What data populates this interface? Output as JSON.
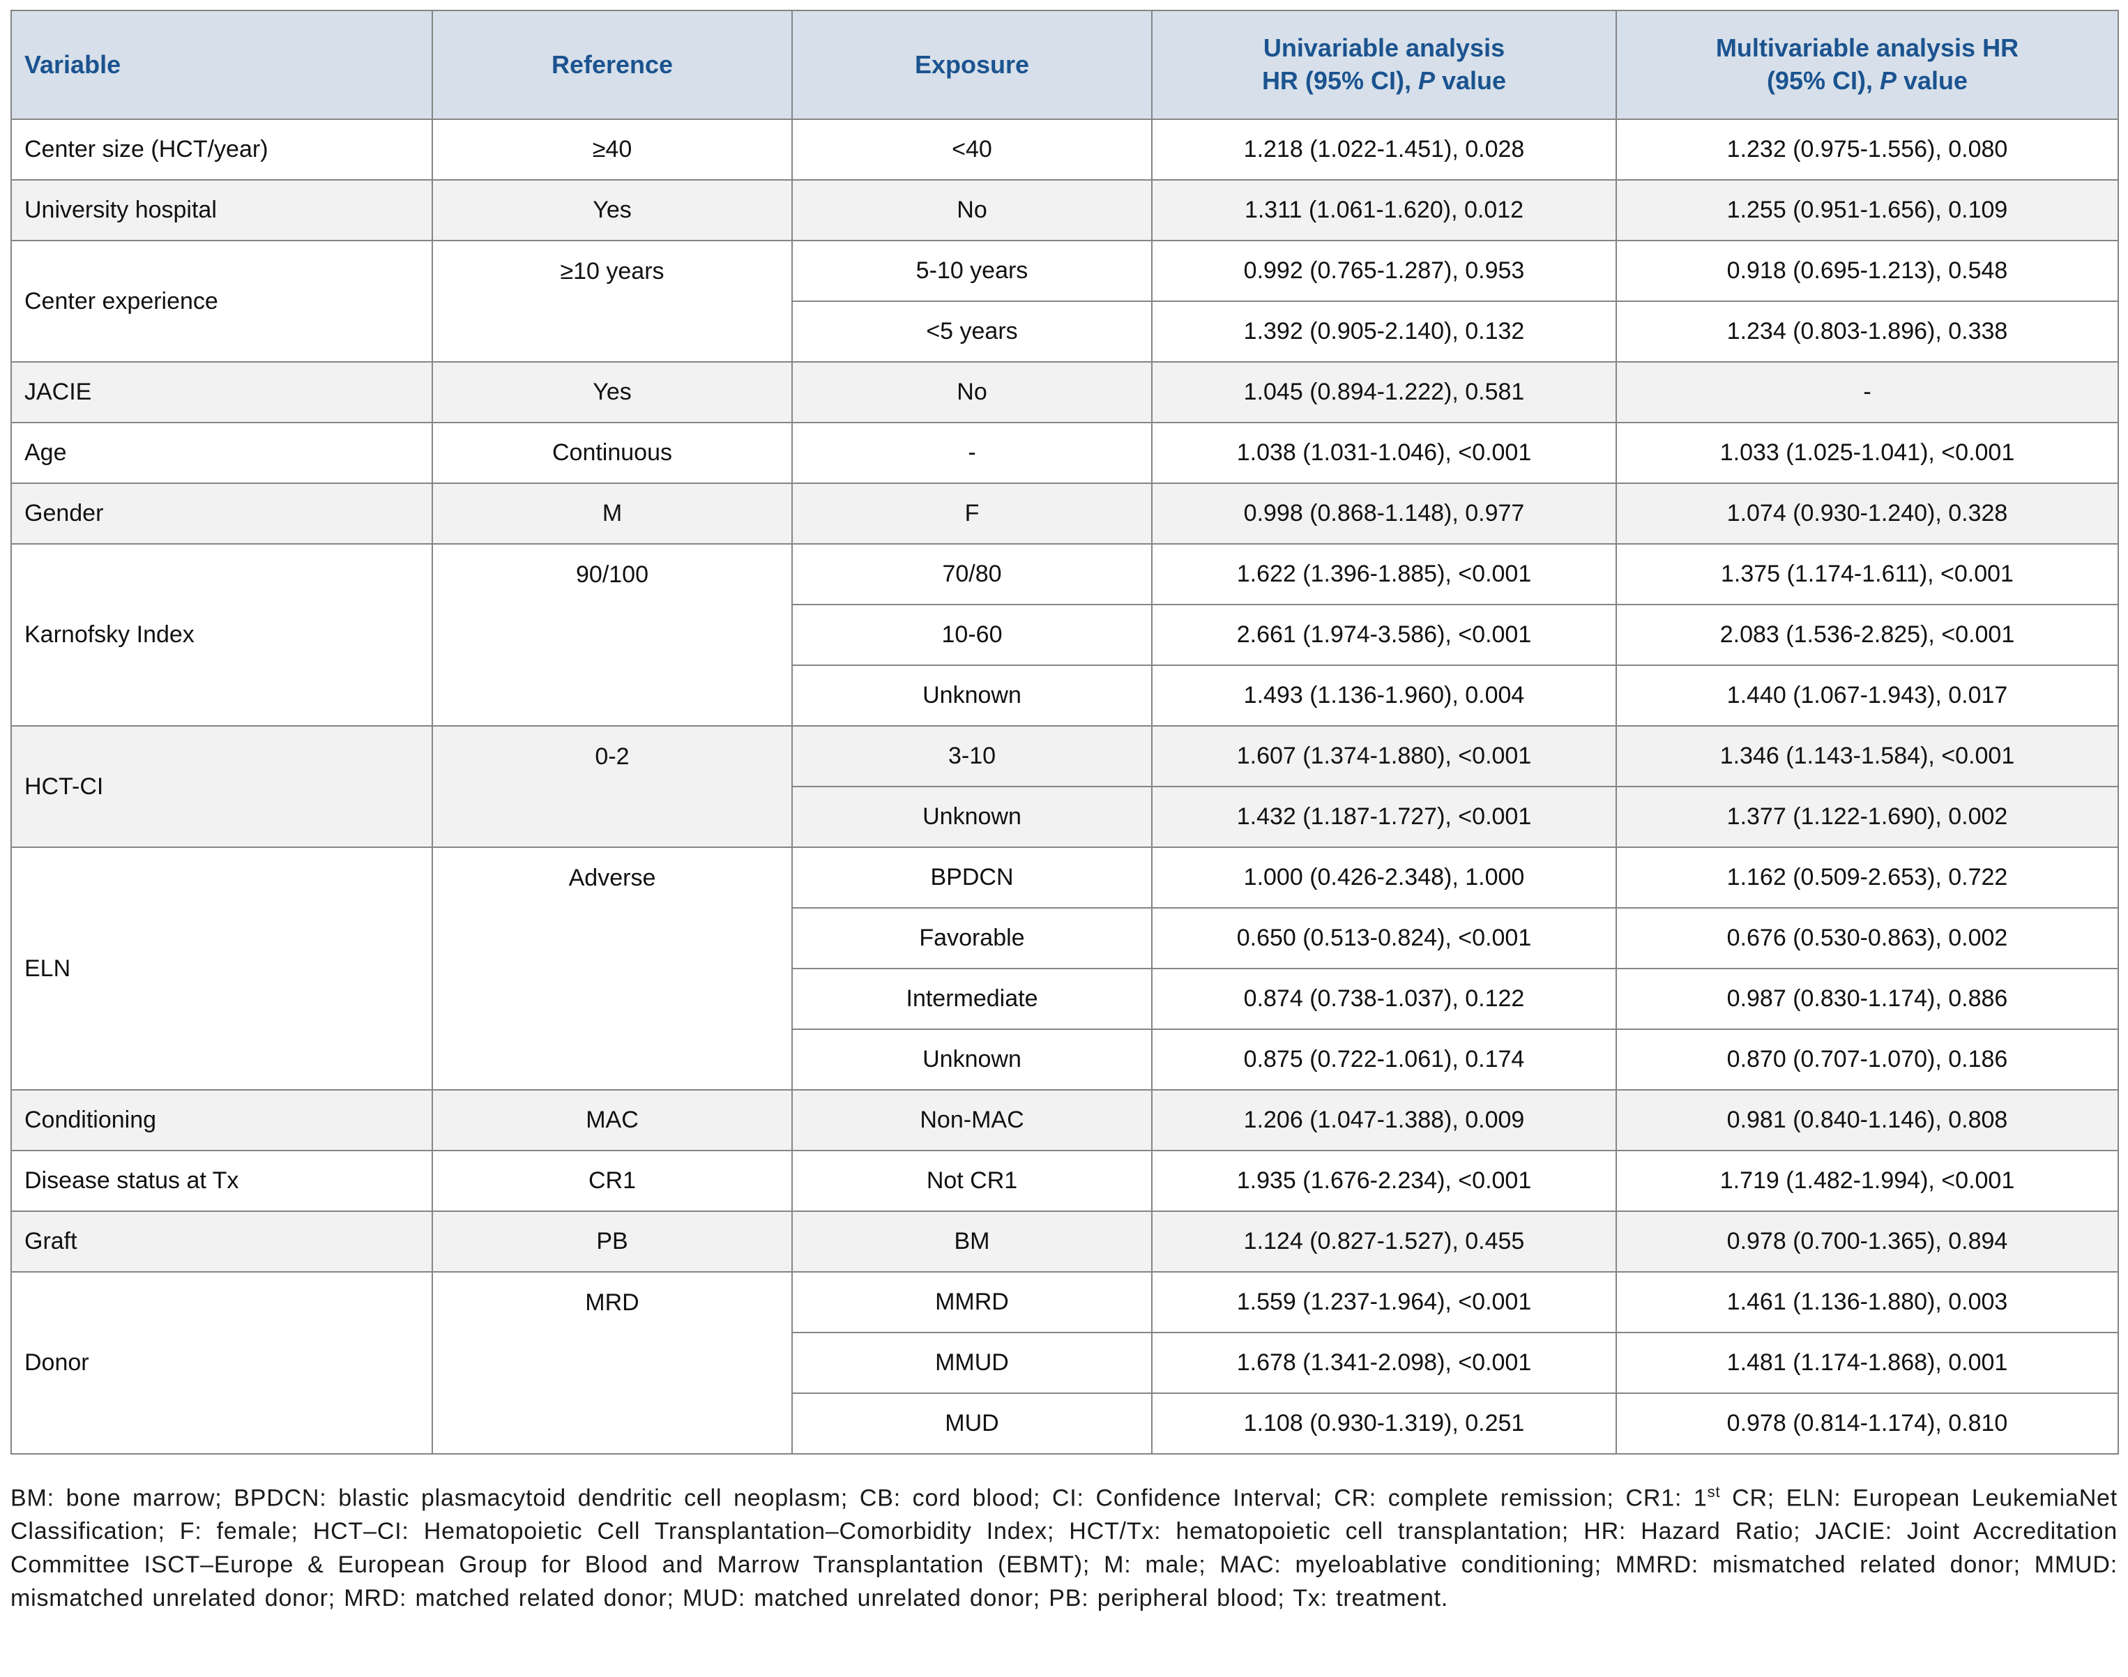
{
  "colors": {
    "header_bg": "#d7e0ea",
    "header_text": "#1b538f",
    "row_alt": "#f2f2f2",
    "border": "#858585"
  },
  "table": {
    "header": {
      "variable": "Variable",
      "reference": "Reference",
      "exposure": "Exposure",
      "univariable_line1": "Univariable analysis",
      "univariable_line2_prefix": "HR (95% CI), ",
      "multivariable_line1": "Multivariable analysis HR",
      "multivariable_line2_prefix": "(95% CI), ",
      "p_italic": "P",
      "value_suffix": " value"
    },
    "groups": [
      {
        "variable": "Center size (HCT/year)",
        "reference": "≥40",
        "shade": false,
        "rows": [
          {
            "exposure": "<40",
            "uni": "1.218 (1.022-1.451), 0.028",
            "multi": "1.232 (0.975-1.556), 0.080"
          }
        ]
      },
      {
        "variable": "University hospital",
        "reference": "Yes",
        "shade": true,
        "rows": [
          {
            "exposure": "No",
            "uni": "1.311 (1.061-1.620), 0.012",
            "multi": "1.255 (0.951-1.656), 0.109"
          }
        ]
      },
      {
        "variable": "Center experience",
        "reference": "≥10 years",
        "shade": false,
        "rows": [
          {
            "exposure": "5-10 years",
            "uni": "0.992 (0.765-1.287), 0.953",
            "multi": "0.918 (0.695-1.213), 0.548"
          },
          {
            "exposure": "<5 years",
            "uni": "1.392 (0.905-2.140), 0.132",
            "multi": "1.234 (0.803-1.896), 0.338"
          }
        ]
      },
      {
        "variable": "JACIE",
        "reference": "Yes",
        "shade": true,
        "rows": [
          {
            "exposure": "No",
            "uni": "1.045 (0.894-1.222), 0.581",
            "multi": "-"
          }
        ]
      },
      {
        "variable": "Age",
        "reference": "Continuous",
        "shade": false,
        "rows": [
          {
            "exposure": "-",
            "uni": "1.038 (1.031-1.046), <0.001",
            "multi": "1.033 (1.025-1.041), <0.001"
          }
        ]
      },
      {
        "variable": "Gender",
        "reference": "M",
        "shade": true,
        "rows": [
          {
            "exposure": "F",
            "uni": "0.998 (0.868-1.148), 0.977",
            "multi": "1.074 (0.930-1.240), 0.328"
          }
        ]
      },
      {
        "variable": "Karnofsky Index",
        "reference": "90/100",
        "shade": false,
        "rows": [
          {
            "exposure": "70/80",
            "uni": "1.622 (1.396-1.885), <0.001",
            "multi": "1.375 (1.174-1.611), <0.001"
          },
          {
            "exposure": "10-60",
            "uni": "2.661 (1.974-3.586), <0.001",
            "multi": "2.083 (1.536-2.825), <0.001"
          },
          {
            "exposure": "Unknown",
            "uni": "1.493 (1.136-1.960), 0.004",
            "multi": "1.440 (1.067-1.943), 0.017"
          }
        ]
      },
      {
        "variable": "HCT-CI",
        "reference": "0-2",
        "shade": true,
        "rows": [
          {
            "exposure": "3-10",
            "uni": "1.607 (1.374-1.880), <0.001",
            "multi": "1.346 (1.143-1.584), <0.001"
          },
          {
            "exposure": "Unknown",
            "uni": "1.432 (1.187-1.727), <0.001",
            "multi": "1.377 (1.122-1.690), 0.002"
          }
        ]
      },
      {
        "variable": "ELN",
        "reference": "Adverse",
        "shade": false,
        "rows": [
          {
            "exposure": "BPDCN",
            "uni": "1.000 (0.426-2.348), 1.000",
            "multi": "1.162 (0.509-2.653), 0.722"
          },
          {
            "exposure": "Favorable",
            "uni": "0.650 (0.513-0.824), <0.001",
            "multi": "0.676 (0.530-0.863), 0.002"
          },
          {
            "exposure": "Intermediate",
            "uni": "0.874 (0.738-1.037), 0.122",
            "multi": "0.987 (0.830-1.174), 0.886"
          },
          {
            "exposure": "Unknown",
            "uni": "0.875 (0.722-1.061), 0.174",
            "multi": "0.870 (0.707-1.070), 0.186"
          }
        ]
      },
      {
        "variable": "Conditioning",
        "reference": "MAC",
        "shade": true,
        "rows": [
          {
            "exposure": "Non-MAC",
            "uni": "1.206 (1.047-1.388), 0.009",
            "multi": "0.981 (0.840-1.146), 0.808"
          }
        ]
      },
      {
        "variable": "Disease status at Tx",
        "reference": "CR1",
        "shade": false,
        "rows": [
          {
            "exposure": "Not CR1",
            "uni": "1.935 (1.676-2.234), <0.001",
            "multi": "1.719 (1.482-1.994), <0.001"
          }
        ]
      },
      {
        "variable": "Graft",
        "reference": "PB",
        "shade": true,
        "rows": [
          {
            "exposure": "BM",
            "uni": "1.124 (0.827-1.527), 0.455",
            "multi": "0.978 (0.700-1.365), 0.894"
          }
        ]
      },
      {
        "variable": "Donor",
        "reference": "MRD",
        "shade": false,
        "rows": [
          {
            "exposure": "MMRD",
            "uni": "1.559 (1.237-1.964), <0.001",
            "multi": "1.461 (1.136-1.880), 0.003"
          },
          {
            "exposure": "MMUD",
            "uni": "1.678 (1.341-2.098), <0.001",
            "multi": "1.481 (1.174-1.868), 0.001"
          },
          {
            "exposure": "MUD",
            "uni": "1.108 (0.930-1.319), 0.251",
            "multi": "0.978 (0.814-1.174), 0.810"
          }
        ]
      }
    ]
  },
  "footnote": {
    "part1": "BM: bone marrow; BPDCN: blastic plasmacytoid dendritic cell neoplasm; CB: cord blood; CI: Confidence Interval; CR: complete remission; CR1: 1",
    "sup": "st",
    "part2": " CR; ELN: European LeukemiaNet Classification; F: female; HCT–CI: Hematopoietic Cell Transplantation–Comorbidity Index; HCT/Tx: hematopoietic cell transplantation; HR: Hazard Ratio; JACIE: Joint Accreditation Committee ISCT–Europe & European Group for Blood and Marrow Transplantation (EBMT); M: male; MAC: myeloablative conditioning; MMRD: mismatched related donor; MMUD: mismatched unrelated donor; MRD: matched related donor; MUD: matched unrelated donor; PB: peripheral blood; Tx: treatment."
  }
}
